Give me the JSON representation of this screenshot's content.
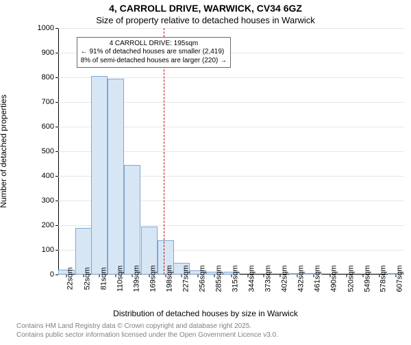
{
  "title_line1": "4, CARROLL DRIVE, WARWICK, CV34 6GZ",
  "title_line2": "Size of property relative to detached houses in Warwick",
  "y_axis_label": "Number of detached properties",
  "x_axis_label": "Distribution of detached houses by size in Warwick",
  "chart": {
    "type": "histogram",
    "background_color": "#ffffff",
    "grid_color": "#e6e6e6",
    "axis_color": "#000000",
    "bar_fill": "#d7e6f4",
    "bar_stroke": "#7fa7d1",
    "marker_color": "#cc0000",
    "ylim": [
      0,
      1000
    ],
    "ytick_step": 100,
    "yticks": [
      0,
      100,
      200,
      300,
      400,
      500,
      600,
      700,
      800,
      900,
      1000
    ],
    "xlim_sqm": [
      7.5,
      622
    ],
    "bin_width_sqm": 29.3,
    "categories_sqm": [
      22,
      52,
      81,
      110,
      139,
      169,
      198,
      227,
      256,
      285,
      315,
      344,
      373,
      402,
      432,
      461,
      490,
      520,
      549,
      578,
      607
    ],
    "x_tick_labels": [
      "22sqm",
      "52sqm",
      "81sqm",
      "110sqm",
      "139sqm",
      "169sqm",
      "198sqm",
      "227sqm",
      "256sqm",
      "285sqm",
      "315sqm",
      "344sqm",
      "373sqm",
      "402sqm",
      "432sqm",
      "461sqm",
      "490sqm",
      "520sqm",
      "549sqm",
      "578sqm",
      "607sqm"
    ],
    "values": [
      20,
      190,
      805,
      795,
      445,
      195,
      140,
      48,
      18,
      10,
      10,
      0,
      0,
      0,
      6,
      6,
      0,
      0,
      0,
      0,
      5
    ],
    "marker_sqm": 195,
    "tick_fontsize": 11,
    "label_fontsize": 12,
    "title_fontsize": 14
  },
  "annotation": {
    "line1": "4 CARROLL DRIVE: 195sqm",
    "line2": "← 91% of detached houses are smaller (2,419)",
    "line3": "8% of semi-detached houses are larger (220) →",
    "top_pct_from_top": 3.5,
    "left_sqm": 40
  },
  "footnote_line1": "Contains HM Land Registry data © Crown copyright and database right 2025.",
  "footnote_line2": "Contains public sector information licensed under the Open Government Licence v3.0."
}
